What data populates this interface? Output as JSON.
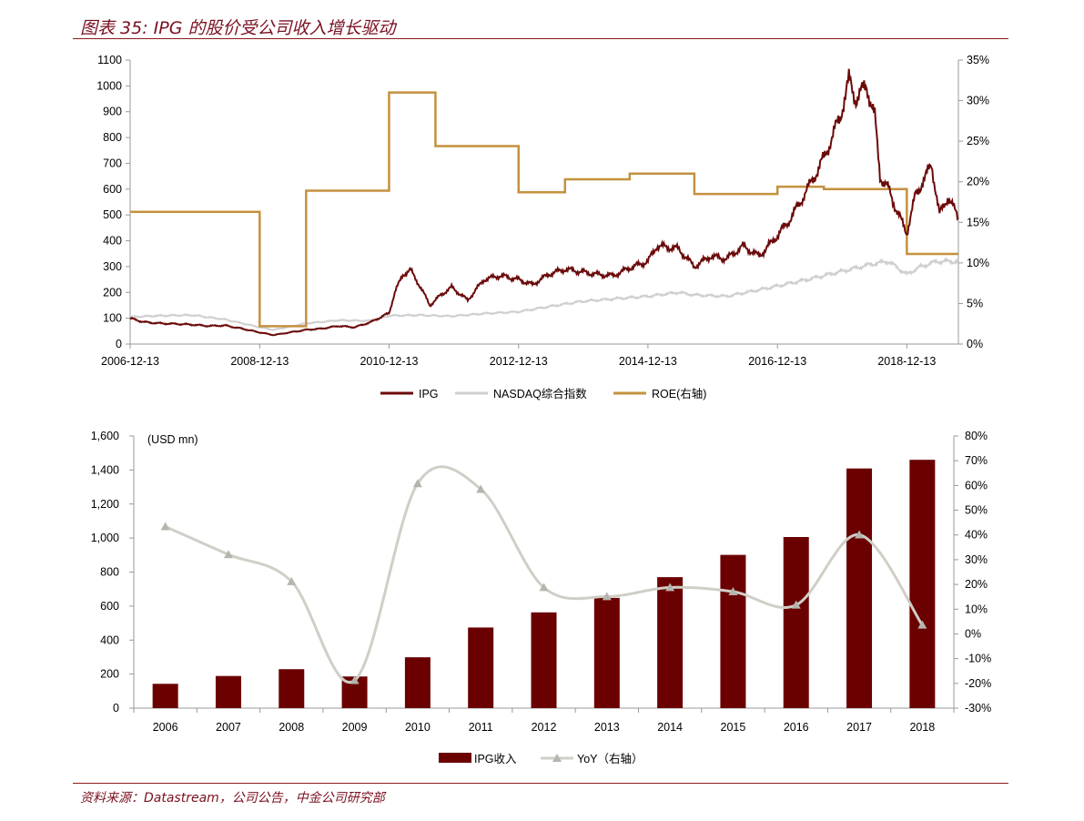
{
  "header": {
    "title": "图表 35: IPG 的股价受公司收入增长驱动"
  },
  "footer": {
    "source": "资料来源：Datastream，公司公告，中金公司研究部"
  },
  "chart_data": [
    {
      "type": "line",
      "title": "",
      "x_ticks": [
        "2006-12-13",
        "2008-12-13",
        "2010-12-13",
        "2012-12-13",
        "2014-12-13",
        "2016-12-13",
        "2018-12-13"
      ],
      "x_range": [
        "2006-12-13",
        "2019-09-30"
      ],
      "y_left_ticks": [
        "0",
        "100",
        "200",
        "300",
        "400",
        "500",
        "600",
        "700",
        "800",
        "900",
        "1000",
        "1100"
      ],
      "y_left_range": [
        0,
        1100
      ],
      "y_right_ticks": [
        "0%",
        "5%",
        "10%",
        "15%",
        "20%",
        "25%",
        "30%",
        "35%"
      ],
      "y_right_range": [
        0,
        35
      ],
      "legend_position": "bottom",
      "series": [
        {
          "name": "IPG",
          "axis": "left",
          "color": "#6b0a0a",
          "points": [
            [
              "2006-12-13",
              100
            ],
            [
              "2007-03-01",
              85
            ],
            [
              "2007-06-01",
              80
            ],
            [
              "2007-09-01",
              78
            ],
            [
              "2007-12-01",
              75
            ],
            [
              "2008-03-01",
              70
            ],
            [
              "2008-06-01",
              72
            ],
            [
              "2008-09-01",
              60
            ],
            [
              "2008-12-13",
              45
            ],
            [
              "2009-03-01",
              35
            ],
            [
              "2009-06-01",
              45
            ],
            [
              "2009-09-01",
              55
            ],
            [
              "2009-12-01",
              60
            ],
            [
              "2010-03-01",
              70
            ],
            [
              "2010-06-01",
              65
            ],
            [
              "2010-09-01",
              85
            ],
            [
              "2010-12-13",
              120
            ],
            [
              "2011-01-15",
              200
            ],
            [
              "2011-03-01",
              270
            ],
            [
              "2011-04-15",
              285
            ],
            [
              "2011-06-01",
              230
            ],
            [
              "2011-08-01",
              150
            ],
            [
              "2011-10-01",
              190
            ],
            [
              "2011-12-01",
              220
            ],
            [
              "2012-03-01",
              170
            ],
            [
              "2012-06-01",
              250
            ],
            [
              "2012-09-01",
              265
            ],
            [
              "2012-12-13",
              250
            ],
            [
              "2013-03-01",
              230
            ],
            [
              "2013-06-01",
              270
            ],
            [
              "2013-09-01",
              290
            ],
            [
              "2013-12-01",
              280
            ],
            [
              "2014-03-01",
              270
            ],
            [
              "2014-06-01",
              265
            ],
            [
              "2014-09-01",
              295
            ],
            [
              "2014-12-13",
              320
            ],
            [
              "2015-02-01",
              380
            ],
            [
              "2015-06-01",
              370
            ],
            [
              "2015-09-01",
              300
            ],
            [
              "2015-12-01",
              340
            ],
            [
              "2016-03-01",
              330
            ],
            [
              "2016-06-01",
              380
            ],
            [
              "2016-09-01",
              340
            ],
            [
              "2016-12-13",
              420
            ],
            [
              "2017-03-01",
              490
            ],
            [
              "2017-06-01",
              600
            ],
            [
              "2017-09-01",
              720
            ],
            [
              "2017-12-01",
              880
            ],
            [
              "2018-01-20",
              1020
            ],
            [
              "2018-03-01",
              950
            ],
            [
              "2018-05-01",
              1000
            ],
            [
              "2018-06-15",
              880
            ],
            [
              "2018-07-15",
              650
            ],
            [
              "2018-09-01",
              600
            ],
            [
              "2018-10-15",
              520
            ],
            [
              "2018-12-13",
              430
            ],
            [
              "2019-02-01",
              580
            ],
            [
              "2019-04-01",
              650
            ],
            [
              "2019-05-01",
              700
            ],
            [
              "2019-06-15",
              500
            ],
            [
              "2019-08-01",
              570
            ],
            [
              "2019-09-30",
              490
            ]
          ]
        },
        {
          "name": "NASDAQ综合指数",
          "axis": "left",
          "color": "#cfcfcf",
          "points": [
            [
              "2006-12-13",
              105
            ],
            [
              "2007-06-01",
              110
            ],
            [
              "2007-12-01",
              112
            ],
            [
              "2008-06-01",
              95
            ],
            [
              "2008-12-13",
              65
            ],
            [
              "2009-03-01",
              55
            ],
            [
              "2009-09-01",
              80
            ],
            [
              "2010-03-01",
              92
            ],
            [
              "2010-09-01",
              90
            ],
            [
              "2010-12-13",
              110
            ],
            [
              "2011-06-01",
              112
            ],
            [
              "2011-12-01",
              108
            ],
            [
              "2012-06-01",
              118
            ],
            [
              "2012-12-13",
              125
            ],
            [
              "2013-06-01",
              145
            ],
            [
              "2013-12-01",
              165
            ],
            [
              "2014-06-01",
              175
            ],
            [
              "2014-12-13",
              185
            ],
            [
              "2015-06-01",
              200
            ],
            [
              "2015-09-01",
              190
            ],
            [
              "2016-03-01",
              185
            ],
            [
              "2016-09-01",
              210
            ],
            [
              "2016-12-13",
              225
            ],
            [
              "2017-06-01",
              250
            ],
            [
              "2017-12-01",
              280
            ],
            [
              "2018-06-01",
              310
            ],
            [
              "2018-09-01",
              320
            ],
            [
              "2018-12-13",
              270
            ],
            [
              "2019-03-01",
              300
            ],
            [
              "2019-06-01",
              320
            ],
            [
              "2019-09-30",
              320
            ]
          ]
        },
        {
          "name": "ROE(右轴)",
          "axis": "right",
          "color": "#c4913f",
          "step": true,
          "points": [
            [
              "2006-12-13",
              16.3
            ],
            [
              "2008-12-13",
              2.2
            ],
            [
              "2009-09-01",
              18.9
            ],
            [
              "2010-12-13",
              31.0
            ],
            [
              "2011-09-01",
              24.4
            ],
            [
              "2012-12-13",
              18.7
            ],
            [
              "2013-09-01",
              20.3
            ],
            [
              "2014-09-01",
              21.0
            ],
            [
              "2015-09-01",
              18.5
            ],
            [
              "2016-12-13",
              19.4
            ],
            [
              "2017-09-01",
              19.1
            ],
            [
              "2018-12-13",
              11.1
            ],
            [
              "2019-09-30",
              11.1
            ]
          ]
        }
      ]
    },
    {
      "type": "bar",
      "title": "",
      "unit_label": "(USD mn)",
      "categories": [
        "2006",
        "2007",
        "2008",
        "2009",
        "2010",
        "2011",
        "2012",
        "2013",
        "2014",
        "2015",
        "2016",
        "2017",
        "2018"
      ],
      "y_left_ticks": [
        "0",
        "200",
        "400",
        "600",
        "800",
        "1,000",
        "1,200",
        "1,400",
        "1,600"
      ],
      "y_left_range": [
        0,
        1600
      ],
      "y_right_ticks": [
        "-30%",
        "-20%",
        "-10%",
        "0%",
        "10%",
        "20%",
        "30%",
        "40%",
        "50%",
        "60%",
        "70%",
        "80%"
      ],
      "y_right_range": [
        -30,
        80
      ],
      "legend_position": "bottom",
      "series": [
        {
          "name": "IPG收入",
          "type": "bar",
          "axis": "left",
          "color": "#6b0000",
          "values": [
            143,
            189,
            229,
            186,
            299,
            474,
            563,
            648,
            770,
            901,
            1006,
            1409,
            1460
          ]
        },
        {
          "name": "YoY（右轴）",
          "type": "line",
          "axis": "right",
          "color": "#cfcfc7",
          "values": [
            43.4,
            32.1,
            21.2,
            -18.8,
            60.8,
            58.5,
            18.8,
            15.1,
            18.8,
            17.1,
            11.7,
            40.1,
            3.6
          ]
        }
      ]
    }
  ]
}
